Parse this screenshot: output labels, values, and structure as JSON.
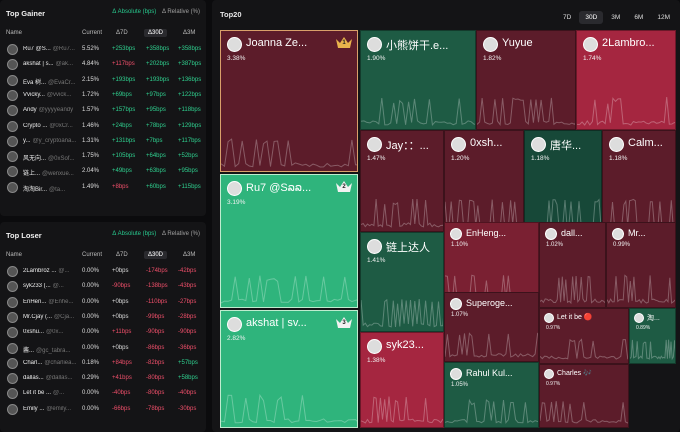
{
  "top_gainer": {
    "title": "Top Gainer",
    "toggle_absolute": "Δ Absolute (bps)",
    "toggle_relative": "Δ Relative (%)",
    "columns": {
      "name": "Name",
      "current": "Current",
      "d7": "Δ7D",
      "d30": "Δ30D",
      "d3m": "Δ3M"
    },
    "rows": [
      {
        "name": "Ru7 @S...",
        "handle": "@Ru7...",
        "current": "5.52%",
        "d7": "+253bps",
        "d30": "+358bps",
        "d3m": "+358bps",
        "d7c": "g",
        "d30c": "g",
        "d3mc": "g"
      },
      {
        "name": "akshat | s...",
        "handle": "@ak...",
        "current": "4.84%",
        "d7": "+117bps",
        "d30": "+202bps",
        "d3m": "+387bps",
        "d7c": "r",
        "d30c": "g",
        "d3mc": "g"
      },
      {
        "name": "Eva 树...",
        "handle": "@EvaCr...",
        "current": "2.15%",
        "d7": "+193bps",
        "d30": "+193bps",
        "d3m": "+136bps",
        "d7c": "g",
        "d30c": "g",
        "d3mc": "g"
      },
      {
        "name": "Vvicky...",
        "handle": "@vvick...",
        "current": "1.72%",
        "d7": "+69bps",
        "d30": "+97bps",
        "d3m": "+122bps",
        "d7c": "g",
        "d30c": "g",
        "d3mc": "g"
      },
      {
        "name": "Andy",
        "handle": "@yyyyeandy",
        "current": "1.57%",
        "d7": "+157bps",
        "d30": "+95bps",
        "d3m": "+118bps",
        "d7c": "g",
        "d30c": "g",
        "d3mc": "g"
      },
      {
        "name": "Crypto ...",
        "handle": "@0xCr...",
        "current": "1.46%",
        "d7": "+24bps",
        "d30": "+78bps",
        "d3m": "+129bps",
        "d7c": "g",
        "d30c": "g",
        "d3mc": "g"
      },
      {
        "name": "y...",
        "handle": "@y_cryptoana...",
        "current": "1.31%",
        "d7": "+131bps",
        "d30": "+7bps",
        "d3m": "+117bps",
        "d7c": "g",
        "d30c": "g",
        "d3mc": "g"
      },
      {
        "name": "风无向...",
        "handle": "@0xSof...",
        "current": "1.75%",
        "d7": "+105bps",
        "d30": "+64bps",
        "d3m": "+52bps",
        "d7c": "g",
        "d30c": "g",
        "d3mc": "g"
      },
      {
        "name": "链上...",
        "handle": "@wenxue...",
        "current": "2.04%",
        "d7": "+49bps",
        "d30": "+63bps",
        "d3m": "+95bps",
        "d7c": "g",
        "d30c": "g",
        "d3mc": "g"
      },
      {
        "name": "淘淘Bir...",
        "handle": "@ta...",
        "current": "1.49%",
        "d7": "+8bps",
        "d30": "+60bps",
        "d3m": "+115bps",
        "d7c": "r",
        "d30c": "g",
        "d3mc": "g"
      }
    ]
  },
  "top_loser": {
    "title": "Top Loser",
    "toggle_absolute": "Δ Absolute (bps)",
    "toggle_relative": "Δ Relative (%)",
    "columns": {
      "name": "Name",
      "current": "Current",
      "d7": "Δ7D",
      "d30": "Δ30D",
      "d3m": "Δ3M"
    },
    "rows": [
      {
        "name": "2Lambroz ...",
        "handle": "@...",
        "current": "0.00%",
        "d7": "+0bps",
        "d30": "-174bps",
        "d3m": "-42bps",
        "d7c": "w",
        "d30c": "r",
        "d3mc": "r"
      },
      {
        "name": "syk233 (...",
        "handle": "@...",
        "current": "0.00%",
        "d7": "-90bps",
        "d30": "-138bps",
        "d3m": "-43bps",
        "d7c": "r",
        "d30c": "r",
        "d3mc": "r"
      },
      {
        "name": "EnHen...",
        "handle": "@Enhe...",
        "current": "0.00%",
        "d7": "+0bps",
        "d30": "-110bps",
        "d3m": "-27bps",
        "d7c": "w",
        "d30c": "r",
        "d3mc": "r"
      },
      {
        "name": "Mr.Cjay (...",
        "handle": "@Cja...",
        "current": "0.00%",
        "d7": "+0bps",
        "d30": "-99bps",
        "d3m": "-28bps",
        "d7c": "w",
        "d30c": "r",
        "d3mc": "r"
      },
      {
        "name": "0xshu...",
        "handle": "@0x...",
        "current": "0.00%",
        "d7": "+11bps",
        "d30": "-90bps",
        "d3m": "-90bps",
        "d7c": "r",
        "d30c": "r",
        "d3mc": "r"
      },
      {
        "name": "酱...",
        "handle": "@gc_tabra...",
        "current": "0.00%",
        "d7": "+0bps",
        "d30": "-86bps",
        "d3m": "-36bps",
        "d7c": "w",
        "d30c": "r",
        "d3mc": "r"
      },
      {
        "name": "Charl...",
        "handle": "@charliea...",
        "current": "0.18%",
        "d7": "+84bps",
        "d30": "-82bps",
        "d3m": "+57bps",
        "d7c": "r",
        "d30c": "r",
        "d3mc": "g"
      },
      {
        "name": "dallas...",
        "handle": "@dallas...",
        "current": "0.29%",
        "d7": "+41bps",
        "d30": "-80bps",
        "d3m": "+58bps",
        "d7c": "r",
        "d30c": "r",
        "d3mc": "g"
      },
      {
        "name": "Let it be ...",
        "handle": "@...",
        "current": "0.00%",
        "d7": "-40bps",
        "d30": "-80bps",
        "d3m": "-40bps",
        "d7c": "r",
        "d30c": "r",
        "d3mc": "r"
      },
      {
        "name": "Emily ...",
        "handle": "@emily...",
        "current": "0.00%",
        "d7": "-66bps",
        "d30": "-78bps",
        "d3m": "-30bps",
        "d7c": "r",
        "d30c": "r",
        "d3mc": "r"
      }
    ]
  },
  "top20": {
    "title": "Top20",
    "ranges": [
      "7D",
      "30D",
      "3M",
      "6M",
      "12M"
    ],
    "selected_range": "30D",
    "tiles": [
      {
        "name": "Joanna Ze...",
        "pct": "3.38%",
        "badge": "1",
        "color": "c-red",
        "size": ""
      },
      {
        "name": "Ru7 @Sລລ...",
        "pct": "3.19%",
        "badge": "2",
        "color": "c-grn2",
        "size": ""
      },
      {
        "name": "akshat | sv...",
        "pct": "2.82%",
        "badge": "3",
        "color": "c-grn2",
        "size": ""
      },
      {
        "name": "小熊饼干.e...",
        "pct": "1.90%",
        "badge": "",
        "color": "c-grn",
        "size": ""
      },
      {
        "name": "Yuyue",
        "pct": "1.82%",
        "badge": "",
        "color": "c-red",
        "size": ""
      },
      {
        "name": "2Lambro...",
        "pct": "1.74%",
        "badge": "",
        "color": "c-red2",
        "size": ""
      },
      {
        "name": "Jay：：...",
        "pct": "1.47%",
        "badge": "",
        "color": "c-red",
        "size": ""
      },
      {
        "name": "0xsh...",
        "pct": "1.20%",
        "badge": "",
        "color": "c-red",
        "size": ""
      },
      {
        "name": "唐华...",
        "pct": "1.18%",
        "badge": "",
        "color": "c-grn3",
        "size": ""
      },
      {
        "name": "Calm...",
        "pct": "1.18%",
        "badge": "",
        "color": "c-red",
        "size": ""
      },
      {
        "name": "链上达人",
        "pct": "1.41%",
        "badge": "",
        "color": "c-grn",
        "size": ""
      },
      {
        "name": "EnHeng...",
        "pct": "1.10%",
        "badge": "",
        "color": "c-red3",
        "size": "sm"
      },
      {
        "name": "dall...",
        "pct": "1.02%",
        "badge": "",
        "color": "c-red",
        "size": "sm"
      },
      {
        "name": "Mr...",
        "pct": "0.99%",
        "badge": "",
        "color": "c-red",
        "size": "sm"
      },
      {
        "name": "Superoge...",
        "pct": "1.07%",
        "badge": "",
        "color": "c-red",
        "size": "sm"
      },
      {
        "name": "syk23...",
        "pct": "1.38%",
        "badge": "",
        "color": "c-red2",
        "size": ""
      },
      {
        "name": "Let it be 🔴",
        "pct": "0.97%",
        "badge": "",
        "color": "c-red",
        "size": "xs"
      },
      {
        "name": "淘...",
        "pct": "0.89%",
        "badge": "",
        "color": "c-grn",
        "size": "xs"
      },
      {
        "name": "Rahul Kul...",
        "pct": "1.05%",
        "badge": "",
        "color": "c-grn",
        "size": "sm"
      },
      {
        "name": "Charles 🎶",
        "pct": "0.97%",
        "badge": "",
        "color": "c-red",
        "size": "xs"
      }
    ]
  },
  "colors": {
    "positive": "#2fd08f",
    "negative": "#ef4f6a",
    "accent": "#28c98e"
  }
}
